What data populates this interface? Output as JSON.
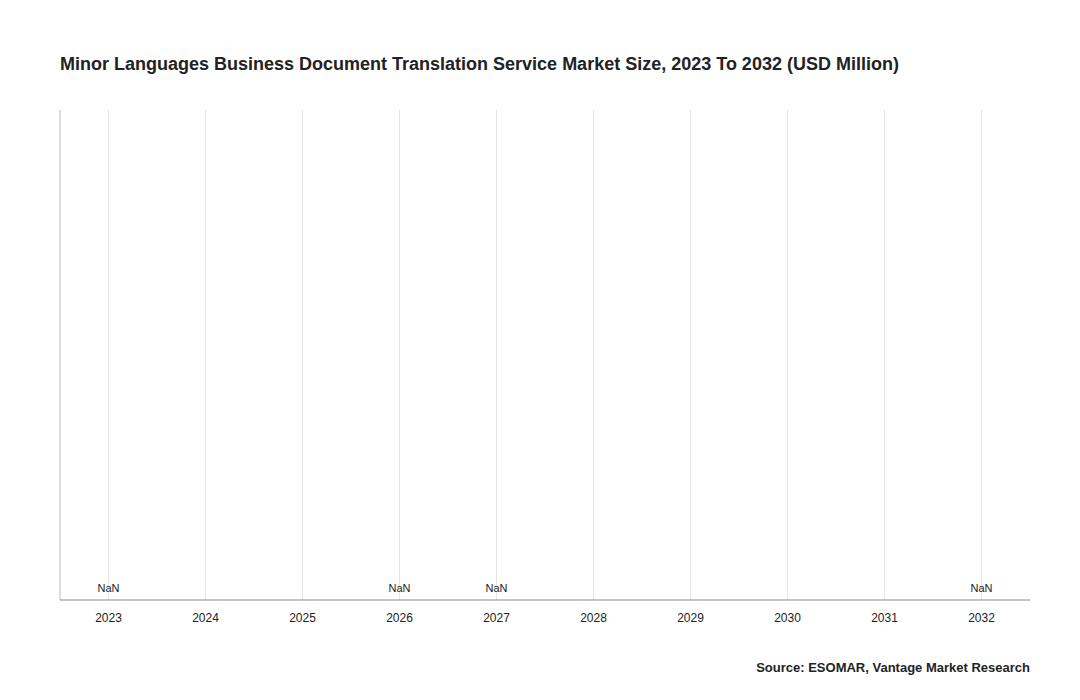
{
  "chart_data": {
    "type": "bar",
    "title": "Minor Languages Business Document Translation Service Market Size, 2023 To 2032 (USD Million)",
    "categories": [
      "2023",
      "2024",
      "2025",
      "2026",
      "2027",
      "2028",
      "2029",
      "2030",
      "2031",
      "2032"
    ],
    "values": [
      null,
      null,
      null,
      null,
      null,
      null,
      null,
      null,
      null,
      null
    ],
    "data_labels": true,
    "value_labels": [
      "NaN",
      null,
      null,
      "NaN",
      "NaN",
      null,
      null,
      null,
      null,
      "NaN"
    ],
    "ylim": [
      0,
      1
    ],
    "yticks": [],
    "tick_labels": "x",
    "grid": true,
    "source": "Source: ESOMAR, Vantage Market Research"
  }
}
